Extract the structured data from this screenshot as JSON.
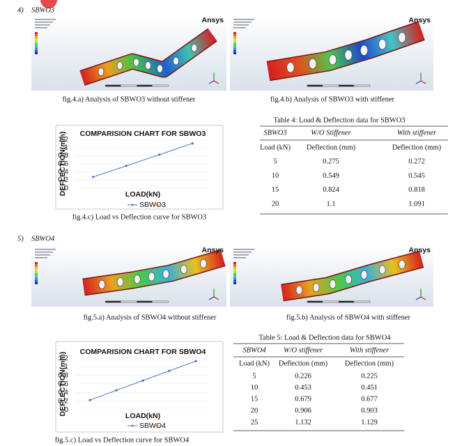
{
  "sections": [
    {
      "number": "4)",
      "title": "SBWO3"
    },
    {
      "number": "5)",
      "title": "SBWO4"
    }
  ],
  "figures": [
    {
      "caption": "fig.4.a) Analysis of SBWO3 without stiffener",
      "logo": "Ansys"
    },
    {
      "caption": "fig.4.b) Analysis of SBWO3 with stiffener",
      "logo": "Ansys"
    },
    {
      "caption": "fig.5.a) Analysis of SBWO4 without stiffener",
      "logo": "Ansys"
    },
    {
      "caption": "fig.5.b) Analysis of SBWO4 with stiffener",
      "logo": "Ansys"
    }
  ],
  "charts": [
    {
      "type": "line",
      "title": "COMPARISION CHART FOR SBWO3",
      "y_label": "DEFLECTION(mm)",
      "x_label": "LOAD(kN)",
      "series": [
        {
          "name": "SBWO3",
          "color": "#4472c4",
          "values": [
            0.275,
            0.549,
            0.824,
            1.1
          ]
        }
      ],
      "ylim": [
        0,
        1.2
      ],
      "yticks": [
        0,
        0.2,
        0.4,
        0.6,
        0.8,
        1,
        1.2
      ],
      "grid": true,
      "caption": "fig.4.c) Load vs Deflection curve for SBWO3"
    },
    {
      "type": "line",
      "title": "COMPARISION CHART FOR SBWO4",
      "y_label": "DEFLECTION(mm)",
      "x_label": "LOAD(kN)",
      "series": [
        {
          "name": "SBWO4",
          "color": "#4472c4",
          "values": [
            0.226,
            0.453,
            0.679,
            0.906,
            1.132
          ]
        }
      ],
      "ylim": [
        0,
        1.2
      ],
      "yticks": [
        0,
        0.2,
        0.4,
        0.6,
        0.8,
        1,
        1.2
      ],
      "grid": true,
      "caption": "fig.5.c) Load vs Deflection curve for SBWO4"
    }
  ],
  "tables": [
    {
      "caption": "Table 4: Load & Deflection data for SBWO3",
      "header": [
        "SBWO3",
        "W/O Stiffener",
        "With stiffener"
      ],
      "subheader": [
        "Load (kN)",
        "Deflection (mm)",
        "Deflection (mm)"
      ],
      "rows": [
        [
          5,
          0.275,
          0.272
        ],
        [
          10,
          0.549,
          0.545
        ],
        [
          15,
          0.824,
          0.818
        ],
        [
          20,
          1.1,
          1.091
        ]
      ]
    },
    {
      "caption": "Table 5: Load & Deflection data for SBWO4",
      "header": [
        "SBWO4",
        "W/O stiffener",
        "With stiffener"
      ],
      "subheader": [
        "Load (kN)",
        "Deflection (mm)",
        "Deflection (mm)"
      ],
      "rows": [
        [
          5,
          0.226,
          0.225
        ],
        [
          10,
          0.453,
          0.451
        ],
        [
          15,
          0.679,
          0.677
        ],
        [
          20,
          0.906,
          0.903
        ],
        [
          25,
          1.132,
          1.129
        ]
      ]
    }
  ]
}
